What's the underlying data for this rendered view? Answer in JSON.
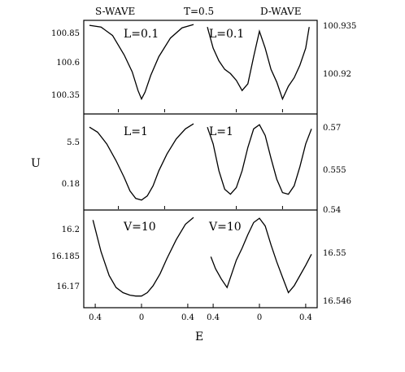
{
  "chart_data": {
    "type": "line",
    "xlabel": "E",
    "ylabel": "U",
    "top_labels": [
      "S-WAVE",
      "T=0.5",
      "D-WAVE"
    ],
    "x_ticks": [
      {
        "value": -0.4,
        "label": "0.4"
      },
      {
        "value": 0,
        "label": "0"
      },
      {
        "value": 0.4,
        "label": "0.4"
      }
    ],
    "x_ticks_right": [
      {
        "value": -0.4,
        "label": "0.4"
      },
      {
        "value": 0,
        "label": "0"
      },
      {
        "value": 0.4,
        "label": "0.4"
      }
    ],
    "rows": [
      {
        "left_ticks": [
          "100.85",
          "100.6",
          "100.35"
        ],
        "right_ticks": [
          "100.935",
          "100.92"
        ],
        "left_label": "L=0.1",
        "right_label": "L=0.1",
        "s_wave": {
          "x": [
            -0.45,
            -0.35,
            -0.25,
            -0.15,
            -0.08,
            -0.03,
            0,
            0.03,
            0.08,
            0.15,
            0.25,
            0.35,
            0.45
          ],
          "y": [
            0.97,
            0.95,
            0.85,
            0.62,
            0.42,
            0.2,
            0.1,
            0.18,
            0.38,
            0.6,
            0.82,
            0.94,
            0.98
          ]
        },
        "d_wave": {
          "x": [
            -0.45,
            -0.4,
            -0.35,
            -0.3,
            -0.25,
            -0.2,
            -0.15,
            -0.1,
            -0.05,
            0,
            0.05,
            0.1,
            0.15,
            0.2,
            0.25,
            0.3,
            0.35,
            0.4,
            0.43
          ],
          "y": [
            0.95,
            0.7,
            0.55,
            0.45,
            0.4,
            0.32,
            0.2,
            0.28,
            0.6,
            0.9,
            0.7,
            0.45,
            0.3,
            0.1,
            0.25,
            0.35,
            0.5,
            0.7,
            0.95
          ]
        }
      },
      {
        "left_ticks": [
          "5.5",
          "0.18"
        ],
        "right_ticks": [
          "0.57",
          "0.555",
          "0.54"
        ],
        "left_label": "L=1",
        "right_label": "L=1",
        "s_wave": {
          "x": [
            -0.45,
            -0.38,
            -0.3,
            -0.22,
            -0.15,
            -0.1,
            -0.05,
            0,
            0.05,
            0.1,
            0.15,
            0.22,
            0.3,
            0.38,
            0.45
          ],
          "y": [
            0.92,
            0.86,
            0.72,
            0.52,
            0.32,
            0.16,
            0.07,
            0.05,
            0.1,
            0.22,
            0.4,
            0.6,
            0.78,
            0.9,
            0.96
          ]
        },
        "d_wave": {
          "x": [
            -0.45,
            -0.4,
            -0.35,
            -0.3,
            -0.25,
            -0.2,
            -0.15,
            -0.1,
            -0.05,
            0,
            0.05,
            0.1,
            0.15,
            0.2,
            0.25,
            0.3,
            0.35,
            0.4,
            0.45
          ],
          "y": [
            0.92,
            0.72,
            0.4,
            0.18,
            0.12,
            0.2,
            0.4,
            0.68,
            0.9,
            0.95,
            0.82,
            0.55,
            0.3,
            0.14,
            0.12,
            0.22,
            0.45,
            0.72,
            0.9
          ]
        }
      },
      {
        "left_ticks": [
          "16.2",
          "16.185",
          "16.17"
        ],
        "right_ticks": [
          "16.55",
          "16.546"
        ],
        "left_label": "V=10",
        "right_label": "V=10",
        "s_wave": {
          "x": [
            -0.42,
            -0.35,
            -0.28,
            -0.22,
            -0.16,
            -0.1,
            -0.05,
            0,
            0.05,
            0.1,
            0.16,
            0.22,
            0.3,
            0.38,
            0.45
          ],
          "y": [
            0.95,
            0.58,
            0.3,
            0.16,
            0.1,
            0.07,
            0.06,
            0.06,
            0.1,
            0.18,
            0.32,
            0.5,
            0.72,
            0.9,
            0.98
          ]
        },
        "d_wave": {
          "x": [
            -0.42,
            -0.38,
            -0.33,
            -0.28,
            -0.24,
            -0.2,
            -0.15,
            -0.1,
            -0.05,
            0,
            0.05,
            0.1,
            0.15,
            0.2,
            0.25,
            0.3,
            0.35,
            0.4,
            0.45
          ],
          "y": [
            0.52,
            0.38,
            0.26,
            0.16,
            0.32,
            0.48,
            0.62,
            0.78,
            0.92,
            0.97,
            0.88,
            0.66,
            0.46,
            0.28,
            0.1,
            0.18,
            0.3,
            0.42,
            0.55
          ]
        }
      }
    ]
  }
}
